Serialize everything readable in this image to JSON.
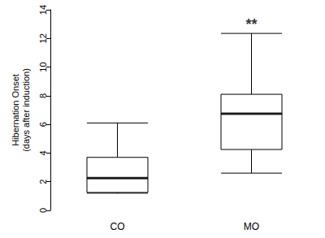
{
  "chart_data": {
    "type": "boxplot",
    "y_label": "Hibernation Onset\n(days after induction)",
    "categories": [
      "CO",
      "MO"
    ],
    "boxes": [
      {
        "min": 1.2,
        "q1": 1.25,
        "median": 2.25,
        "q3": 3.7,
        "max": 6.1
      },
      {
        "min": 2.6,
        "q1": 4.25,
        "median": 6.75,
        "q3": 8.1,
        "max": 12.35
      }
    ],
    "color": "#000000",
    "ylim": [
      0,
      14
    ],
    "yticks": [
      0,
      2,
      4,
      6,
      8,
      10,
      12,
      14
    ],
    "grid": false,
    "annotations": [
      {
        "text": "**",
        "category": "MO"
      }
    ]
  }
}
